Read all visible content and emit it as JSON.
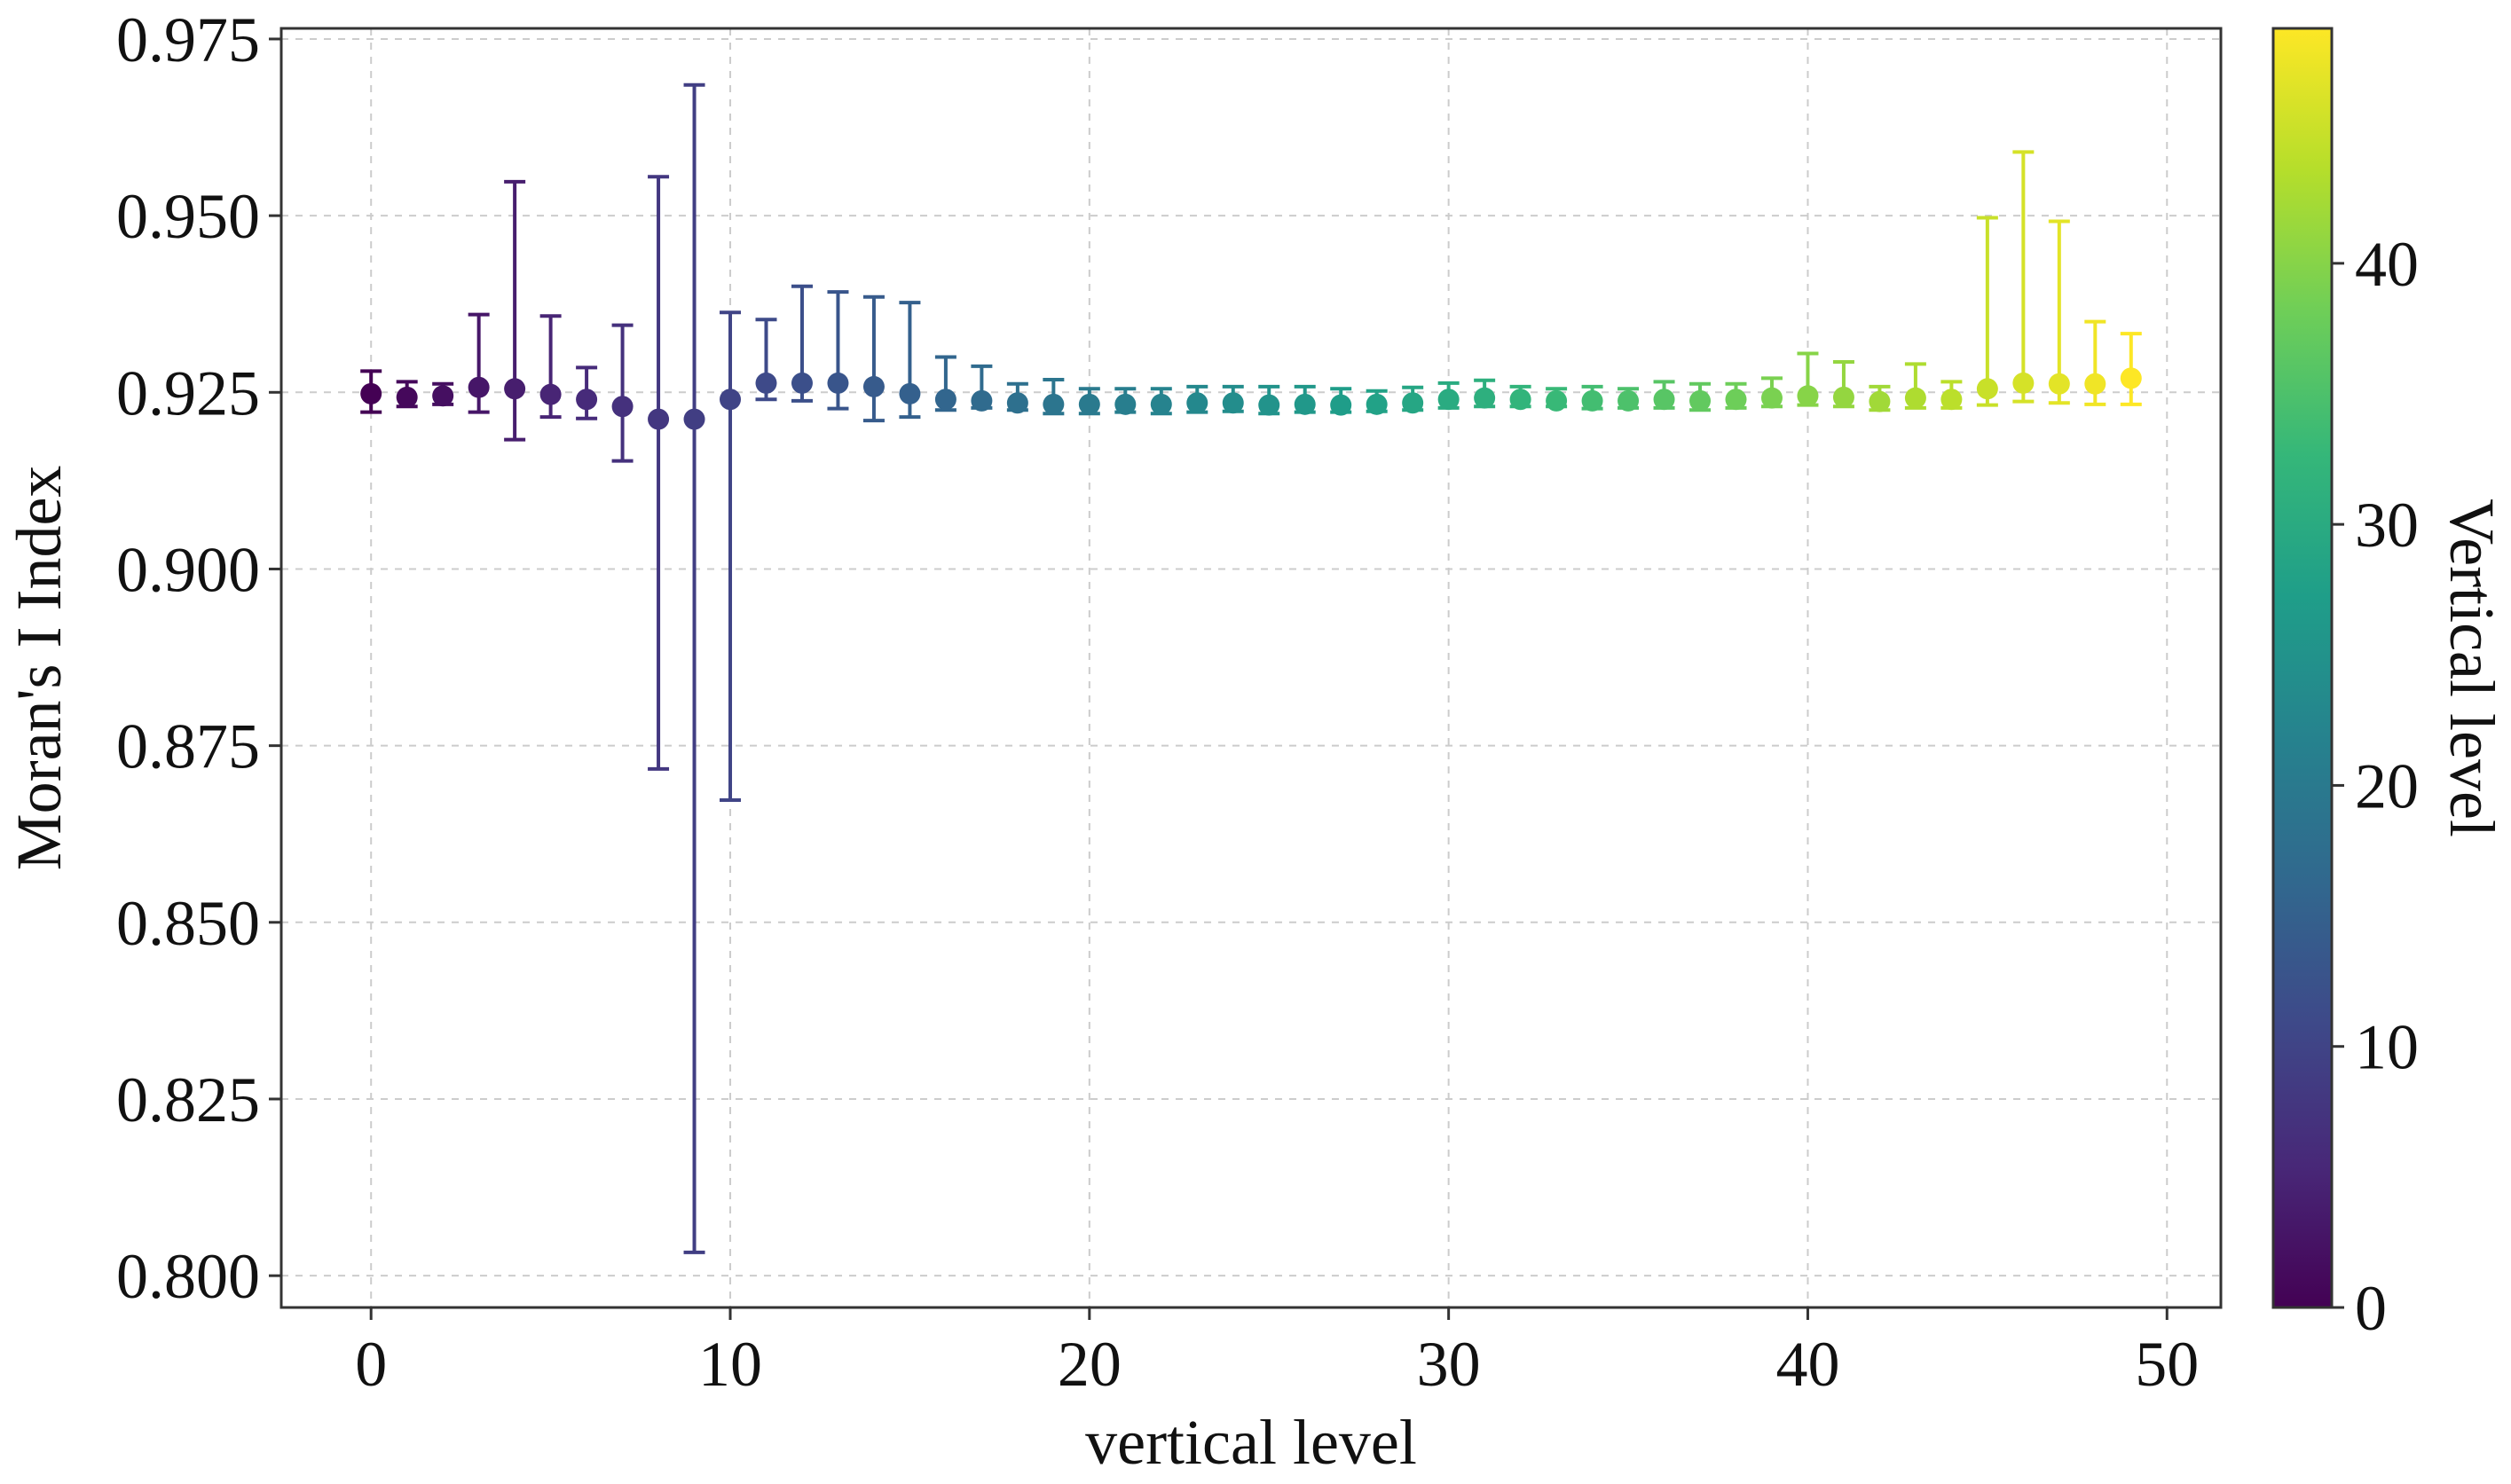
{
  "chart_data": {
    "type": "scatter",
    "title": "",
    "xlabel": "vertical level",
    "ylabel": "Moran's I Index",
    "xlim": [
      -2.5,
      51.5
    ],
    "ylim": [
      0.7955,
      0.9765
    ],
    "xticks": [
      "0",
      "10",
      "20",
      "30",
      "40",
      "50"
    ],
    "yticks": [
      "0.800",
      "0.825",
      "0.850",
      "0.875",
      "0.900",
      "0.925",
      "0.950",
      "0.975"
    ],
    "grid": true,
    "colorbar": {
      "label": "Vertical level",
      "range": [
        0,
        49
      ],
      "ticks": [
        "0",
        "10",
        "20",
        "30",
        "40"
      ],
      "colormap": "viridis",
      "colors": [
        "#440154",
        "#482878",
        "#3e4989",
        "#31688e",
        "#26828e",
        "#1f9e89",
        "#35b779",
        "#6ece58",
        "#b5de2b",
        "#fde725"
      ]
    },
    "series": [
      {
        "x": [
          0,
          1,
          2,
          3,
          4,
          5,
          6,
          7,
          8,
          9,
          10,
          11,
          12,
          13,
          14,
          15,
          16,
          17,
          18,
          19,
          20,
          21,
          22,
          23,
          24,
          25,
          26,
          27,
          28,
          29,
          30,
          31,
          32,
          33,
          34,
          35,
          36,
          37,
          38,
          39,
          40,
          41,
          42,
          43,
          44,
          45,
          46,
          47,
          48,
          49
        ],
        "y": [
          0.9248,
          0.9243,
          0.9245,
          0.9257,
          0.9255,
          0.9247,
          0.924,
          0.923,
          0.9212,
          0.9212,
          0.924,
          0.9263,
          0.9263,
          0.9263,
          0.9258,
          0.9248,
          0.924,
          0.9238,
          0.9235,
          0.9233,
          0.9233,
          0.9233,
          0.9233,
          0.9235,
          0.9235,
          0.9232,
          0.9233,
          0.9232,
          0.9233,
          0.9235,
          0.924,
          0.9242,
          0.924,
          0.9238,
          0.9238,
          0.9238,
          0.924,
          0.9238,
          0.924,
          0.9242,
          0.9245,
          0.9243,
          0.9237,
          0.9242,
          0.924,
          0.9255,
          0.9263,
          0.9262,
          0.9262,
          0.927
        ],
        "y_upper": [
          0.928,
          0.9265,
          0.9262,
          0.936,
          0.9548,
          0.9358,
          0.9285,
          0.9345,
          0.9555,
          0.9685,
          0.9363,
          0.9353,
          0.94,
          0.9392,
          0.9385,
          0.9377,
          0.93,
          0.9287,
          0.9262,
          0.9268,
          0.9255,
          0.9255,
          0.9255,
          0.9258,
          0.9258,
          0.9258,
          0.9258,
          0.9255,
          0.9252,
          0.9257,
          0.9263,
          0.9267,
          0.9258,
          0.9255,
          0.9258,
          0.9255,
          0.9265,
          0.9262,
          0.9262,
          0.927,
          0.9305,
          0.9293,
          0.9258,
          0.929,
          0.9265,
          0.9497,
          0.959,
          0.9492,
          0.935,
          0.9333
        ],
        "y_lower": [
          0.9222,
          0.923,
          0.9233,
          0.9222,
          0.9183,
          0.9215,
          0.9213,
          0.9153,
          0.8717,
          0.8033,
          0.8673,
          0.924,
          0.9238,
          0.9227,
          0.921,
          0.9215,
          0.9225,
          0.9228,
          0.9225,
          0.922,
          0.922,
          0.9222,
          0.922,
          0.9222,
          0.9223,
          0.922,
          0.9222,
          0.9222,
          0.9223,
          0.9225,
          0.9228,
          0.923,
          0.923,
          0.923,
          0.9227,
          0.9228,
          0.9228,
          0.9225,
          0.9228,
          0.923,
          0.9232,
          0.923,
          0.9225,
          0.9228,
          0.9228,
          0.9232,
          0.9237,
          0.9235,
          0.9233,
          0.9233
        ]
      }
    ]
  }
}
